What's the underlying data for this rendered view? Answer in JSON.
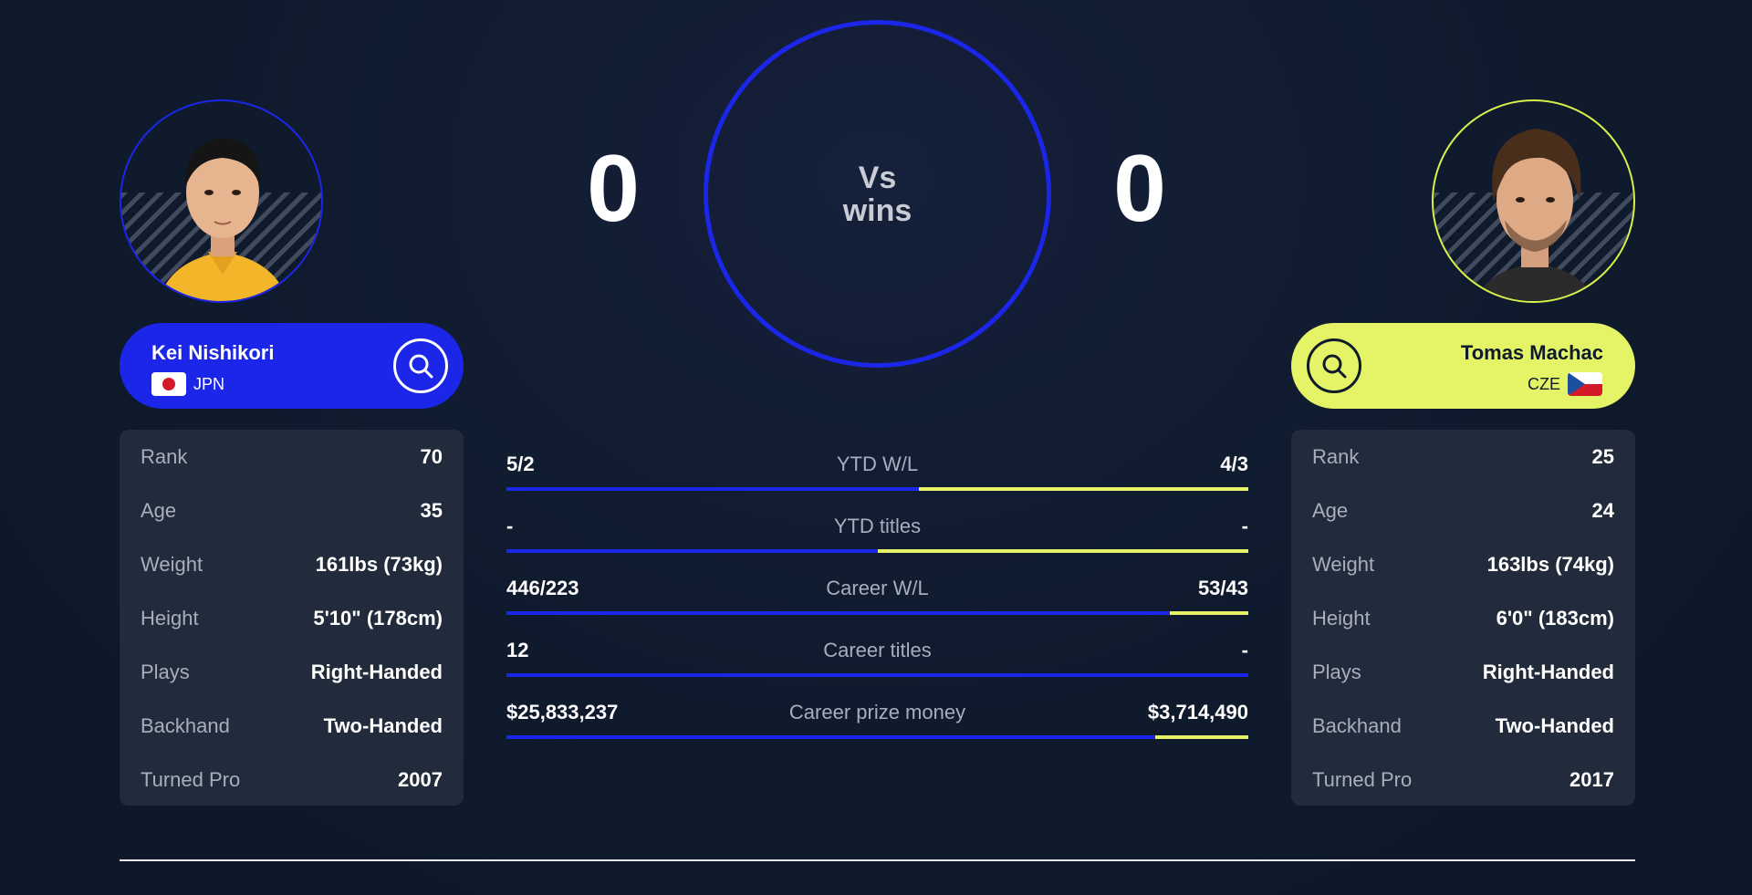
{
  "h2h": {
    "left_score": "0",
    "right_score": "0",
    "center_line1": "Vs",
    "center_line2": "wins"
  },
  "player1": {
    "name": "Kei Nishikori",
    "country": "JPN",
    "flag": "japan-flag",
    "accent": "#1b26e8",
    "stats": [
      {
        "label": "Rank",
        "value": "70"
      },
      {
        "label": "Age",
        "value": "35"
      },
      {
        "label": "Weight",
        "value": "161lbs (73kg)"
      },
      {
        "label": "Height",
        "value": "5'10\" (178cm)"
      },
      {
        "label": "Plays",
        "value": "Right-Handed"
      },
      {
        "label": "Backhand",
        "value": "Two-Handed"
      },
      {
        "label": "Turned Pro",
        "value": "2007"
      }
    ]
  },
  "player2": {
    "name": "Tomas Machac",
    "country": "CZE",
    "flag": "czech-flag",
    "accent": "#e5f466",
    "stats": [
      {
        "label": "Rank",
        "value": "25"
      },
      {
        "label": "Age",
        "value": "24"
      },
      {
        "label": "Weight",
        "value": "163lbs (74kg)"
      },
      {
        "label": "Height",
        "value": "6'0\" (183cm)"
      },
      {
        "label": "Plays",
        "value": "Right-Handed"
      },
      {
        "label": "Backhand",
        "value": "Two-Handed"
      },
      {
        "label": "Turned Pro",
        "value": "2017"
      }
    ]
  },
  "comparison": [
    {
      "left": "5/2",
      "label": "YTD W/L",
      "right": "4/3",
      "left_share": 0.556
    },
    {
      "left": "-",
      "label": "YTD titles",
      "right": "-",
      "left_share": 0.5
    },
    {
      "left": "446/223",
      "label": "Career W/L",
      "right": "53/43",
      "left_share": 0.894
    },
    {
      "left": "12",
      "label": "Career titles",
      "right": "-",
      "left_share": 1.0
    },
    {
      "left": "$25,833,237",
      "label": "Career prize money",
      "right": "$3,714,490",
      "left_share": 0.874
    }
  ],
  "colors": {
    "player1": "#1b26e8",
    "player2": "#e5f466",
    "background": "#0f1a2d"
  }
}
